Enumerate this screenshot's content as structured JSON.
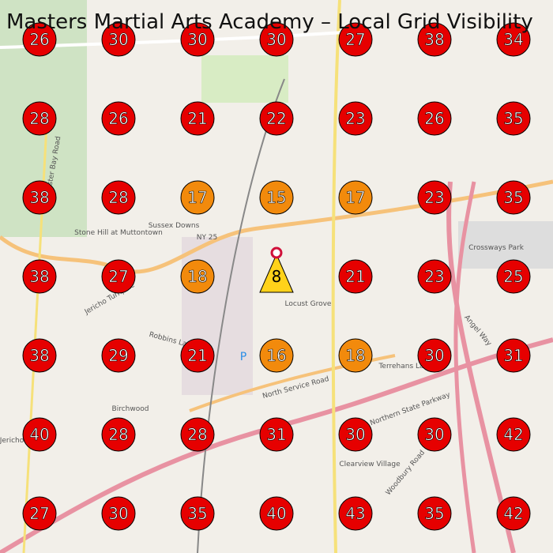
{
  "header": {
    "title": "Masters Martial Arts Academy – Local Grid Visibility"
  },
  "grid": {
    "rows": [
      [
        26,
        30,
        30,
        30,
        27,
        38,
        34
      ],
      [
        28,
        26,
        21,
        22,
        23,
        26,
        35
      ],
      [
        38,
        28,
        17,
        15,
        17,
        23,
        35
      ],
      [
        38,
        27,
        18,
        8,
        21,
        23,
        25
      ],
      [
        38,
        29,
        21,
        16,
        18,
        30,
        31
      ],
      [
        40,
        28,
        28,
        31,
        30,
        30,
        42
      ],
      [
        27,
        30,
        35,
        40,
        43,
        35,
        42
      ]
    ]
  },
  "map_labels": [
    "NY 25",
    "Jericho Turnpike",
    "Stone Hill at Muttontown",
    "Sussex Downs",
    "Locust Grove",
    "Birchwood",
    "Jericho",
    "Robbins La",
    "North Service Road",
    "Northern State Parkway",
    "Crossways Park",
    "Clearview Village",
    "Woodbury Road",
    "Terrehans La",
    "Oyster Bay Road",
    "Angel Way"
  ]
}
